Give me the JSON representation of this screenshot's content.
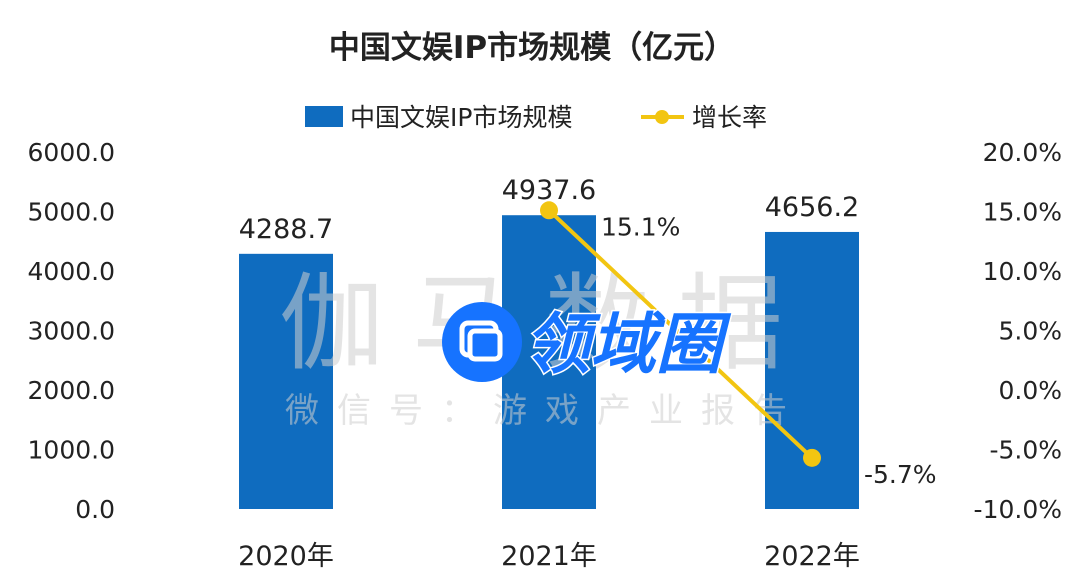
{
  "chart_data": {
    "type": "bar",
    "title": "中国文娱IP市场规模（亿元）",
    "categories": [
      "2020年",
      "2021年",
      "2022年"
    ],
    "series": [
      {
        "name": "中国文娱IP市场规模",
        "type": "bar",
        "axis": "left",
        "values": [
          4288.7,
          4937.6,
          4656.2
        ],
        "labels": [
          "4288.7",
          "4937.6",
          "4656.2"
        ]
      },
      {
        "name": "增长率",
        "type": "line",
        "axis": "right",
        "points": [
          {
            "x": "2021年",
            "y": 15.1,
            "label": "15.1%"
          },
          {
            "x": "2022年",
            "y": -5.7,
            "label": "-5.7%"
          }
        ]
      }
    ],
    "y_left": {
      "range": [
        0,
        6000
      ],
      "ticks": [
        "0.0",
        "1000.0",
        "2000.0",
        "3000.0",
        "4000.0",
        "5000.0",
        "6000.0"
      ]
    },
    "y_right": {
      "range": [
        -10,
        20
      ],
      "ticks": [
        "-10.0%",
        "-5.0%",
        "0.0%",
        "5.0%",
        "10.0%",
        "15.0%",
        "20.0%"
      ]
    },
    "grid": false,
    "legend_position": "top"
  },
  "colors": {
    "bar": "#0F6CBF",
    "line": "#F2C511",
    "text": "#222222",
    "watermark": "#cfcfcf",
    "badge": "#1673FF"
  },
  "watermark": {
    "line1": "伽马数据",
    "line2": "微信号：游戏产业报告",
    "badge_text": "领域圈"
  }
}
